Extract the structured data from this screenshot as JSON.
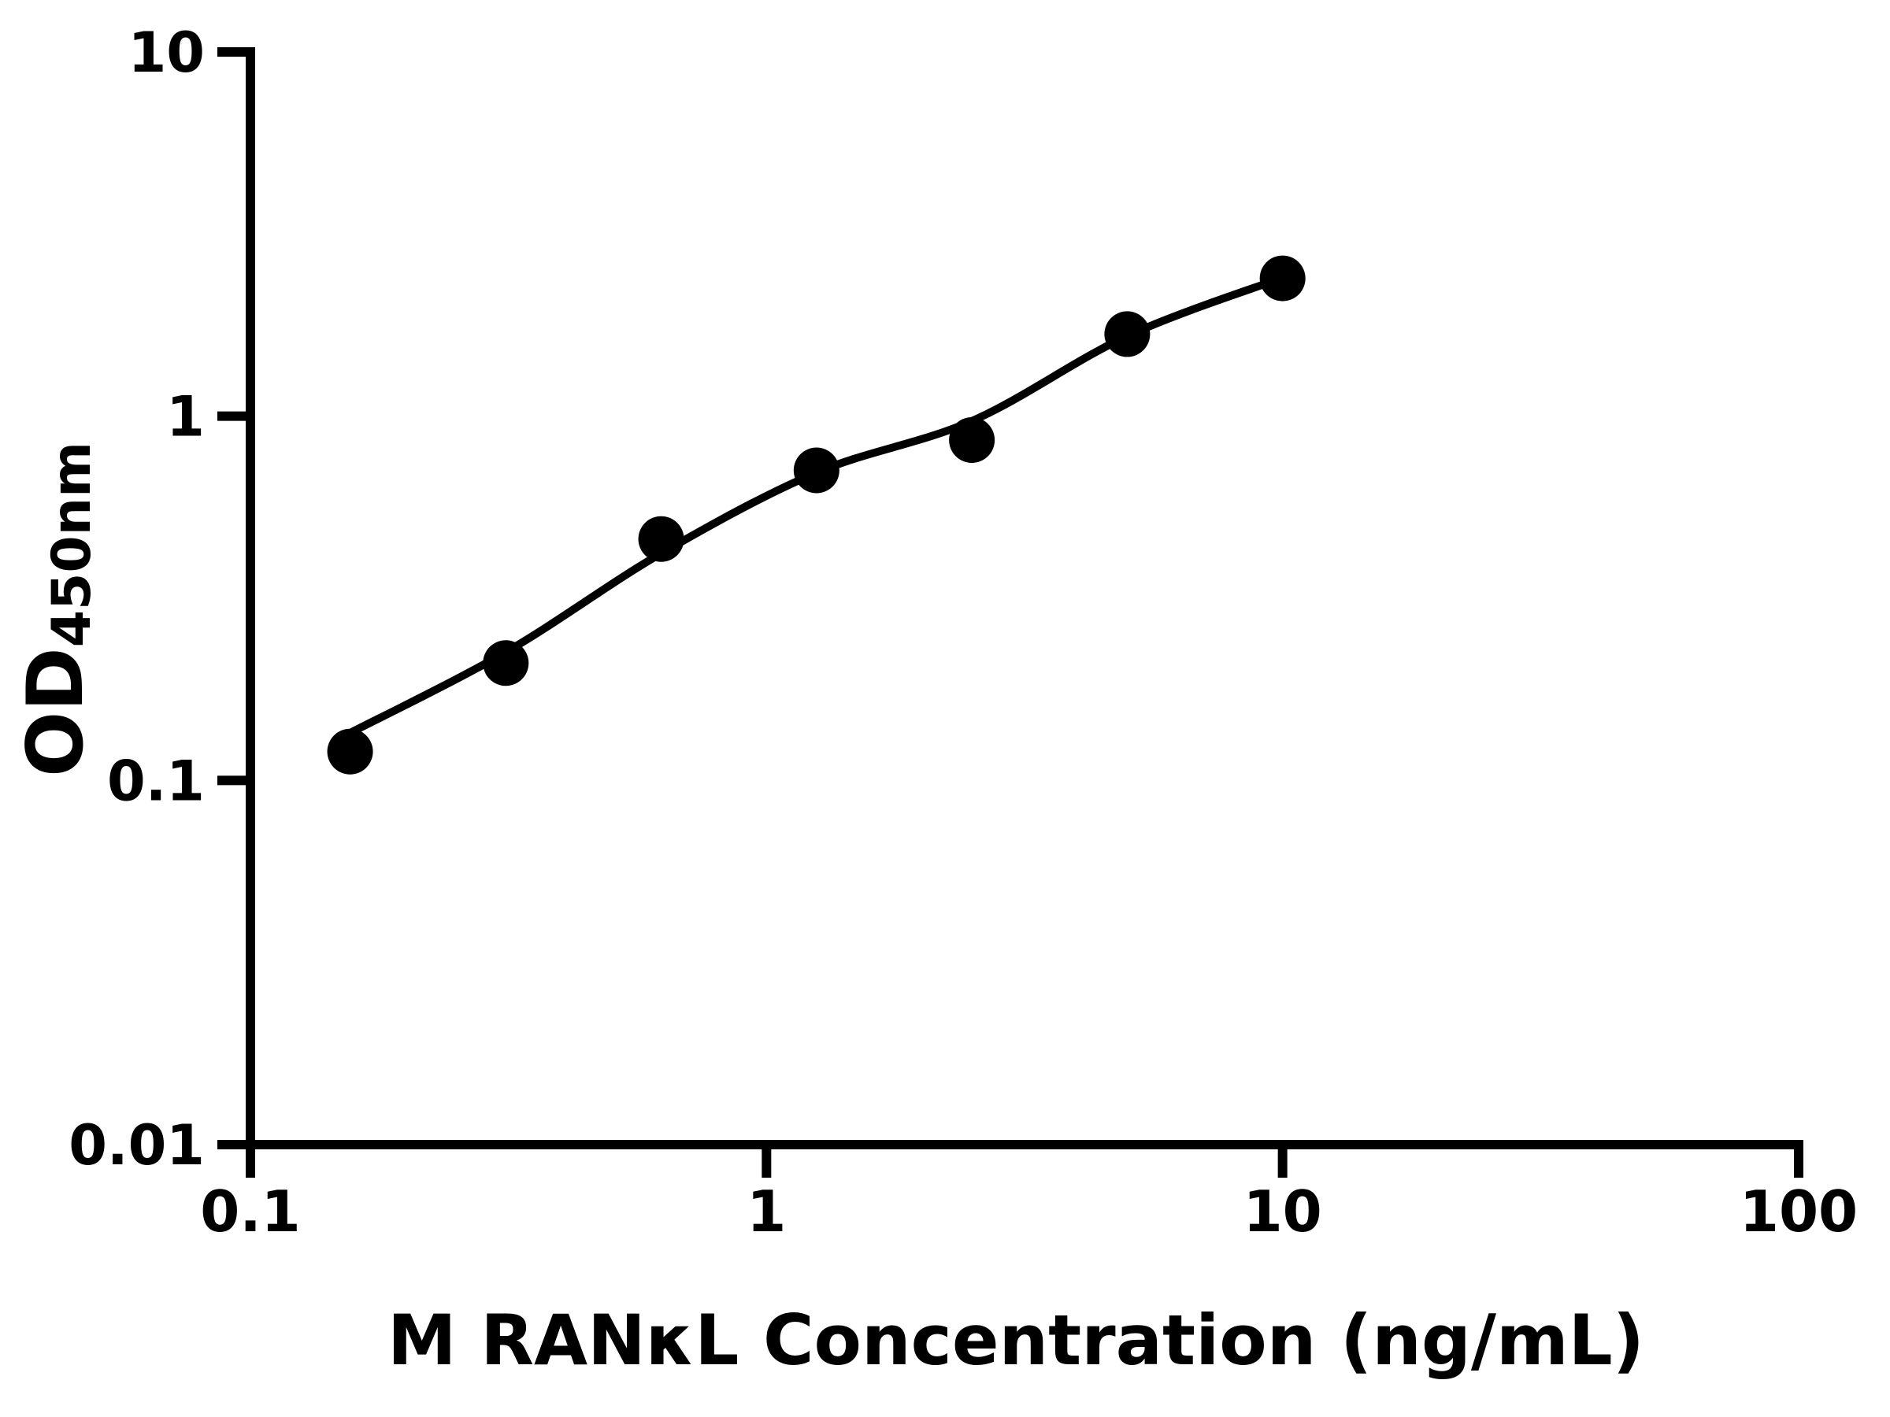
{
  "figure": {
    "background_color": "#ffffff",
    "ink_color": "#000000"
  },
  "chart_data": {
    "type": "scatter",
    "title": "",
    "xlabel": "M RANκL Concentration (ng/mL)",
    "ylabel": "OD",
    "ylabel_subscript": "450nm",
    "x_scale": "log",
    "y_scale": "log",
    "xlim": [
      0.1,
      100
    ],
    "ylim": [
      0.01,
      10
    ],
    "grid": false,
    "legend": false,
    "x_ticks": {
      "values": [
        0.1,
        1,
        10,
        100
      ],
      "labels": [
        "0.1",
        "1",
        "10",
        "100"
      ]
    },
    "y_ticks": {
      "values": [
        0.01,
        0.1,
        1,
        10
      ],
      "labels": [
        "0.01",
        "0.1",
        "1",
        "10"
      ]
    },
    "series": [
      {
        "name": "standard-points",
        "marker": "filled-circle",
        "color": "#000000",
        "points": [
          {
            "x": 0.156,
            "y": 0.12
          },
          {
            "x": 0.3125,
            "y": 0.21
          },
          {
            "x": 0.625,
            "y": 0.46
          },
          {
            "x": 1.25,
            "y": 0.71
          },
          {
            "x": 2.5,
            "y": 0.86
          },
          {
            "x": 5,
            "y": 1.68
          },
          {
            "x": 10,
            "y": 2.39
          }
        ]
      }
    ],
    "fit_curve": {
      "points": [
        {
          "x": 0.156,
          "y": 0.135
        },
        {
          "x": 0.3125,
          "y": 0.225
        },
        {
          "x": 0.625,
          "y": 0.42
        },
        {
          "x": 1.25,
          "y": 0.7
        },
        {
          "x": 2.5,
          "y": 0.97
        },
        {
          "x": 5,
          "y": 1.66
        },
        {
          "x": 10,
          "y": 2.4
        }
      ]
    }
  }
}
